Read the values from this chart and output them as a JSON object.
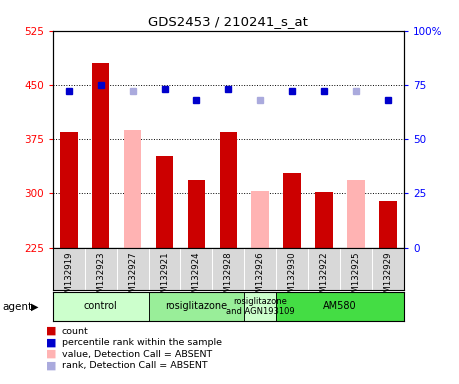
{
  "title": "GDS2453 / 210241_s_at",
  "samples": [
    "GSM132919",
    "GSM132923",
    "GSM132927",
    "GSM132921",
    "GSM132924",
    "GSM132928",
    "GSM132926",
    "GSM132930",
    "GSM132922",
    "GSM132925",
    "GSM132929"
  ],
  "bar_values": [
    385,
    480,
    null,
    352,
    318,
    385,
    null,
    328,
    302,
    null,
    290
  ],
  "bar_values_absent": [
    null,
    null,
    388,
    null,
    null,
    null,
    303,
    null,
    null,
    318,
    null
  ],
  "bar_color_present": "#cc0000",
  "bar_color_absent": "#ffb3b3",
  "dot_values": [
    72,
    75,
    null,
    73,
    68,
    73,
    null,
    72,
    72,
    null,
    68
  ],
  "dot_values_absent": [
    null,
    null,
    72,
    null,
    null,
    null,
    68,
    null,
    null,
    72,
    null
  ],
  "dot_color_present": "#0000cc",
  "dot_color_absent": "#aaaadd",
  "ylim_left": [
    225,
    525
  ],
  "ylim_right": [
    0,
    100
  ],
  "yticks_left": [
    225,
    300,
    375,
    450,
    525
  ],
  "yticks_right": [
    0,
    25,
    50,
    75,
    100
  ],
  "agent_groups": [
    {
      "label": "control",
      "start": 0,
      "end": 2,
      "color": "#ccffcc"
    },
    {
      "label": "rosiglitazone",
      "start": 3,
      "end": 5,
      "color": "#99ee99"
    },
    {
      "label": "rosiglitazone\nand AGN193109",
      "start": 6,
      "end": 6,
      "color": "#ccffcc"
    },
    {
      "label": "AM580",
      "start": 7,
      "end": 10,
      "color": "#44dd44"
    }
  ],
  "legend_items": [
    {
      "color": "#cc0000",
      "label": "count"
    },
    {
      "color": "#0000cc",
      "label": "percentile rank within the sample"
    },
    {
      "color": "#ffb3b3",
      "label": "value, Detection Call = ABSENT"
    },
    {
      "color": "#aaaadd",
      "label": "rank, Detection Call = ABSENT"
    }
  ],
  "bar_width": 0.55
}
